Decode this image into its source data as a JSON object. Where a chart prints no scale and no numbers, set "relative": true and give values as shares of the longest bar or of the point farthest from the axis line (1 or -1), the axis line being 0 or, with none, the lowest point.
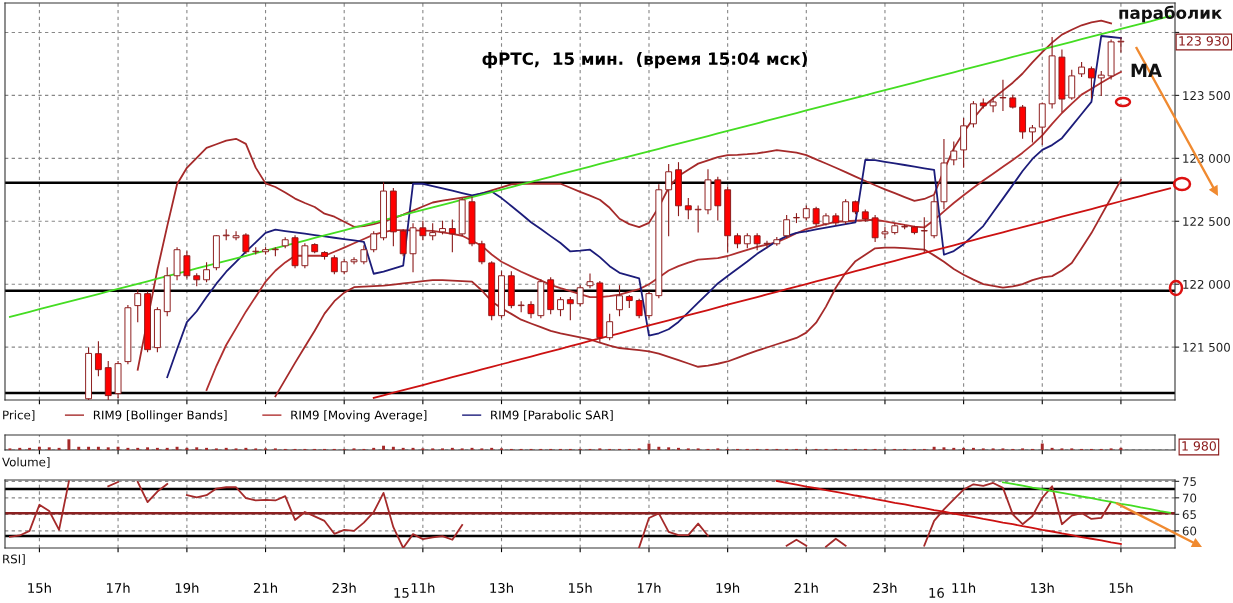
{
  "chart_data": [
    {
      "type": "candlestick",
      "title": "фРТС,  15 мин.  (время 15:04 мск)",
      "ohlc": [
        null,
        null,
        null,
        null,
        null,
        null,
        null,
        null,
        [
          121090,
          121495,
          121085,
          121450
        ],
        [
          121448,
          121543,
          121274,
          121321
        ],
        [
          121337,
          121385,
          121083,
          121115
        ],
        [
          121131,
          121385,
          121100,
          121369
        ],
        [
          121385,
          121830,
          121369,
          121813
        ],
        [
          121830,
          121956,
          121702,
          121925
        ],
        [
          121925,
          121940,
          121464,
          121480
        ],
        [
          121496,
          121813,
          121464,
          121798
        ],
        [
          121782,
          122130,
          121750,
          122067
        ],
        [
          122067,
          122290,
          122035,
          122274
        ],
        [
          122226,
          122258,
          122050,
          122067
        ],
        [
          122067,
          122082,
          121988,
          122035
        ],
        [
          122035,
          122170,
          122020,
          122115
        ],
        [
          122131,
          122385,
          122115,
          122385
        ],
        [
          122385,
          122432,
          122353,
          122390
        ],
        [
          122369,
          122416,
          122353,
          122385
        ],
        [
          122391,
          122400,
          122245,
          122258
        ],
        [
          122258,
          122290,
          122240,
          122262
        ],
        [
          122258,
          122290,
          122240,
          122274
        ],
        [
          122274,
          122290,
          122226,
          122278
        ],
        [
          122305,
          122369,
          122290,
          122353
        ],
        [
          122369,
          122385,
          122131,
          122147
        ],
        [
          122147,
          122320,
          122131,
          122305
        ],
        [
          122315,
          122320,
          122250,
          122258
        ],
        [
          122252,
          122258,
          122200,
          122220
        ],
        [
          122210,
          122226,
          122083,
          122099
        ],
        [
          122099,
          122194,
          122083,
          122178
        ],
        [
          122178,
          122210,
          122162,
          122194
        ],
        [
          122178,
          122305,
          122162,
          122274
        ],
        [
          122274,
          122416,
          122258,
          122400
        ],
        [
          122369,
          122805,
          122353,
          122740
        ],
        [
          122740,
          122760,
          122305,
          122416
        ],
        [
          122423,
          122432,
          122226,
          122242
        ],
        [
          122242,
          122480,
          122099,
          122448
        ],
        [
          122448,
          122500,
          122353,
          122385
        ],
        [
          122385,
          122480,
          122353,
          122410
        ],
        [
          122416,
          122500,
          122400,
          122442
        ],
        [
          122442,
          122510,
          122258,
          122400
        ],
        [
          122400,
          122680,
          122385,
          122670
        ],
        [
          122655,
          122690,
          122305,
          122321
        ],
        [
          122321,
          122340,
          122162,
          122178
        ],
        [
          122169,
          122178,
          121718,
          121750
        ],
        [
          121750,
          122099,
          121734,
          122067
        ],
        [
          122067,
          122099,
          121813,
          121830
        ],
        [
          121830,
          121860,
          121782,
          121834
        ],
        [
          121839,
          121860,
          121734,
          121766
        ],
        [
          121750,
          122035,
          121734,
          122020
        ],
        [
          122035,
          122050,
          121766,
          121798
        ],
        [
          121798,
          121893,
          121750,
          121877
        ],
        [
          121877,
          121893,
          121718,
          121845
        ],
        [
          121845,
          121988,
          121830,
          121972
        ],
        [
          121988,
          122080,
          121972,
          122020
        ],
        [
          122010,
          122020,
          121543,
          121575
        ],
        [
          121575,
          121760,
          121560,
          121702
        ],
        [
          121797,
          121988,
          121750,
          121908
        ],
        [
          121902,
          121910,
          121815,
          121870
        ],
        [
          121870,
          121880,
          121734,
          121750
        ],
        [
          121750,
          121940,
          121734,
          121925
        ],
        [
          121909,
          122790,
          121893,
          122750
        ],
        [
          122750,
          122950,
          122385,
          122893
        ],
        [
          122909,
          122965,
          122545,
          122623
        ],
        [
          122623,
          122680,
          122520,
          122591
        ],
        [
          122591,
          122620,
          122416,
          122595
        ],
        [
          122591,
          122909,
          122560,
          122829
        ],
        [
          122829,
          122850,
          122510,
          122623
        ],
        [
          122750,
          122770,
          122258,
          122385
        ],
        [
          122385,
          122400,
          122290,
          122321
        ],
        [
          122321,
          122400,
          122290,
          122385
        ],
        [
          122385,
          122400,
          122274,
          122321
        ],
        [
          122321,
          122340,
          122290,
          122325
        ],
        [
          122321,
          122370,
          122310,
          122353
        ],
        [
          122385,
          122545,
          122370,
          122512
        ],
        [
          122527,
          122560,
          122490,
          122530
        ],
        [
          122527,
          122620,
          122510,
          122600
        ],
        [
          122600,
          122610,
          122465,
          122480
        ],
        [
          122480,
          122560,
          122470,
          122543
        ],
        [
          122543,
          122560,
          122470,
          122487
        ],
        [
          122496,
          122670,
          122480,
          122655
        ],
        [
          122655,
          122660,
          122560,
          122575
        ],
        [
          122575,
          122590,
          122500,
          122518
        ],
        [
          122527,
          122545,
          122340,
          122369
        ],
        [
          122400,
          122450,
          122369,
          122416
        ],
        [
          122410,
          122480,
          122400,
          122464
        ],
        [
          122455,
          122470,
          122440,
          122458
        ],
        [
          122455,
          122460,
          122400,
          122410
        ],
        [
          122423,
          122527,
          122258,
          122426
        ],
        [
          122385,
          122700,
          122370,
          122655
        ],
        [
          122655,
          123150,
          122600,
          122963
        ],
        [
          122988,
          123130,
          122950,
          123058
        ],
        [
          123067,
          123315,
          122930,
          123258
        ],
        [
          123274,
          123450,
          123250,
          123433
        ],
        [
          123440,
          123470,
          123400,
          123417
        ],
        [
          123417,
          123480,
          123370,
          123448
        ],
        [
          123480,
          123620,
          123380,
          123483
        ],
        [
          123480,
          123500,
          123400,
          123407
        ],
        [
          123407,
          123420,
          123160,
          123210
        ],
        [
          123210,
          123260,
          123130,
          123242
        ],
        [
          123248,
          123440,
          123110,
          123433
        ],
        [
          123433,
          123960,
          123400,
          123814
        ],
        [
          123804,
          123860,
          123370,
          123471
        ],
        [
          123480,
          123700,
          123470,
          123655
        ],
        [
          123671,
          123760,
          123650,
          123725
        ],
        [
          123712,
          123725,
          123480,
          123639
        ],
        [
          123639,
          123690,
          123500,
          123661
        ],
        [
          123655,
          123940,
          123630,
          123925
        ],
        [
          123925,
          123958,
          123845,
          123930
        ],
        null,
        null,
        null,
        null,
        null
      ],
      "colors": [
        null,
        null,
        null,
        null,
        null,
        null,
        null,
        null,
        "#ffffff",
        "#ff0000",
        "#ff0000",
        "#ffffff",
        "#ffffff",
        "#ffffff",
        "#ff0000",
        "#ffffff",
        "#ffffff",
        "#ffffff",
        "#ff0000",
        "#ff0000",
        "#ffffff",
        "#ffffff",
        "#ffffff",
        "#ffffff",
        "#ff0000",
        "#ffffff",
        "#ffffff",
        "#ffffff",
        "#ffffff",
        "#ff0000",
        "#ffffff",
        "#ff0000",
        "#ff0000",
        "#ff0000",
        "#ffffff",
        "#ffffff",
        "#ffffff",
        "#ffffff",
        "#ffffff",
        "#ff0000",
        "#ff0000",
        "#ffffff",
        "#ff0000",
        "#ffffff",
        "#ffffff",
        "#ff0000",
        "#ffffff",
        "#ff0000",
        "#ff0000",
        "#ff0000",
        "#ffffff",
        "#ff0000",
        "#ffffff",
        "#ff0000",
        "#ffffff",
        "#ff0000",
        "#ffffff",
        "#ff0000",
        "#ffffff",
        "#ffffff",
        "#ff0000",
        "#ffffff",
        "#ffffff",
        "#ff0000",
        "#ff0000",
        "#ffffff",
        "#ffffff",
        "#ffffff",
        "#ff0000",
        "#ff0000",
        "#ffffff",
        "#ffffff",
        "#ff0000",
        "#ff0000",
        "#ff0000",
        "#ffffff",
        "#ff0000",
        "#ffffff",
        "#ffffff",
        "#ffffff",
        "#ffffff",
        "#ffffff",
        "#ff0000",
        "#ffffff",
        "#ff0000",
        "#ffffff",
        "#ff0000",
        "#ff0000",
        "#ff0000",
        "#ffffff",
        "#ffffff",
        "#ffffff",
        "#ff0000",
        "#ffffff",
        "#ffffff",
        "#ffffff",
        "#ffffff",
        "#ffffff",
        "#ffffff",
        "#ff0000",
        "#ffffff",
        "#ffffff",
        "#ff0000",
        "#ff0000",
        "#ffffff",
        "#ffffff",
        "#ffffff",
        "#ff0000",
        "#ffffff",
        "#ffffff",
        "#ff0000",
        "#ffffff",
        "#ffffff",
        "#ffffff",
        null,
        null,
        null,
        null,
        null
      ],
      "series": [
        {
          "type": "line",
          "name": "RIM9 [Bollinger Bands]",
          "color": "#a52a2a",
          "values": [
            null,
            null,
            null,
            null,
            null,
            null,
            null,
            null,
            null,
            null,
            null,
            null,
            null,
            121321,
            121718,
            122115,
            122461,
            122794,
            122925,
            123004,
            123083,
            123112,
            123140,
            123155,
            123115,
            122926,
            122801,
            122772,
            122728,
            122680,
            122645,
            122613,
            122560,
            122536,
            122496,
            122456,
            122461,
            122477,
            122499,
            122523,
            122553,
            122585,
            122617,
            122649,
            122664,
            122676,
            122688,
            122700,
            122721,
            122745,
            122769,
            122793,
            122798,
            122798,
            122798,
            122798,
            122798,
            122766,
            122734,
            122703,
            122671,
            122607,
            122520,
            122477,
            122454,
            122487,
            122613,
            122766,
            122859,
            122910,
            122958,
            122984,
            123010,
            123025,
            123028,
            123033,
            123040,
            123052,
            123065,
            123055,
            123045,
            123026,
            122992,
            122959,
            122925,
            122890,
            122855,
            122820,
            122786,
            122754,
            122723,
            122692,
            122662,
            122677,
            122711,
            122905,
            123079,
            123206,
            123316,
            123412,
            123475,
            123538,
            123601,
            123674,
            123762,
            123844,
            123919,
            123983,
            124021,
            124057,
            124080,
            124094,
            124072,
            null,
            null,
            null,
            null,
            null,
            null
          ]
        },
        {
          "type": "line",
          "color": "#a52a2a",
          "values": [
            null,
            null,
            null,
            null,
            null,
            null,
            null,
            null,
            null,
            null,
            null,
            null,
            null,
            null,
            null,
            null,
            null,
            null,
            null,
            null,
            null,
            null,
            null,
            null,
            null,
            null,
            null,
            121109,
            121242,
            121375,
            121503,
            121630,
            121766,
            121865,
            121933,
            121976,
            121980,
            121984,
            121988,
            121997,
            122006,
            122015,
            122024,
            122033,
            122032,
            122028,
            122024,
            122020,
            121950,
            121863,
            121809,
            121764,
            121718,
            121688,
            121659,
            121629,
            121610,
            121594,
            121578,
            121562,
            121535,
            121512,
            121493,
            121484,
            121476,
            121467,
            121448,
            121422,
            121396,
            121370,
            121344,
            121353,
            121368,
            121386,
            121415,
            121444,
            121472,
            121497,
            121523,
            121548,
            121573,
            121615,
            121694,
            121822,
            121972,
            122091,
            122183,
            122234,
            122285,
            122290,
            122290,
            122287,
            122281,
            122275,
            122229,
            122178,
            122121,
            122075,
            122036,
            122001,
            121986,
            121973,
            121982,
            122000,
            122032,
            122054,
            122064,
            122109,
            122168,
            122286,
            122406,
            122547,
            122687,
            122828,
            null,
            null,
            null,
            null,
            null
          ]
        },
        {
          "type": "line",
          "name": "RIM9 [Moving Average]",
          "color": "#b03030",
          "values": [
            null,
            null,
            null,
            null,
            null,
            null,
            null,
            null,
            null,
            null,
            null,
            null,
            null,
            null,
            null,
            null,
            null,
            null,
            null,
            null,
            121159,
            121350,
            121517,
            121649,
            121782,
            121901,
            122020,
            122107,
            122173,
            122226,
            122226,
            122226,
            122226,
            122258,
            122290,
            122325,
            122359,
            122394,
            122413,
            122429,
            122430,
            122428,
            122426,
            122423,
            122412,
            122399,
            122385,
            122345,
            122305,
            122236,
            122178,
            122139,
            122099,
            122064,
            122030,
            121995,
            121969,
            121945,
            121921,
            121898,
            121898,
            121905,
            121918,
            121939,
            121961,
            122000,
            122054,
            122109,
            122144,
            122171,
            122195,
            122201,
            122207,
            122224,
            122248,
            122272,
            122296,
            122315,
            122334,
            122367,
            122405,
            122438,
            122457,
            122477,
            122496,
            122500,
            122504,
            122508,
            122512,
            122499,
            122486,
            122471,
            122458,
            122451,
            122510,
            122579,
            122645,
            122706,
            122766,
            122824,
            122878,
            122933,
            122987,
            123045,
            123109,
            123183,
            123274,
            123360,
            123435,
            123506,
            123553,
            123600,
            123646,
            123687,
            null,
            null,
            null,
            null,
            null
          ]
        },
        {
          "type": "line",
          "name": "RIM9 [Parabolic SAR]",
          "color": "#1c1c7a",
          "values": [
            null,
            null,
            null,
            null,
            null,
            null,
            null,
            null,
            null,
            null,
            null,
            null,
            null,
            null,
            null,
            null,
            121261,
            121483,
            121699,
            121785,
            121898,
            122004,
            122099,
            122178,
            122258,
            122333,
            122408,
            122433,
            122422,
            122412,
            122401,
            122390,
            122380,
            122369,
            122358,
            122348,
            122337,
            122083,
            122100,
            122124,
            122147,
            122798,
            122798,
            122780,
            122761,
            122743,
            122724,
            122705,
            122721,
            122737,
            122684,
            122621,
            122558,
            122492,
            122438,
            122382,
            122327,
            122260,
            122266,
            122274,
            122215,
            122143,
            122090,
            122068,
            122047,
            121591,
            121610,
            121642,
            121700,
            121776,
            121853,
            121929,
            122006,
            122065,
            122123,
            122180,
            122241,
            122292,
            122343,
            122382,
            122407,
            122420,
            122435,
            122450,
            122464,
            122477,
            122491,
            122988,
            122985,
            122972,
            122960,
            122947,
            122934,
            122921,
            122909,
            122234,
            122263,
            122318,
            122390,
            122462,
            122571,
            122680,
            122789,
            122899,
            122995,
            123067,
            123105,
            123160,
            123256,
            123352,
            123448,
            123972,
            123964,
            123956,
            null,
            null,
            null,
            null,
            null
          ]
        },
        {
          "type": "line",
          "color": "#44dd22",
          "values": [
            121740,
            121760,
            121781,
            121801,
            121821,
            121841,
            121862,
            121882,
            121902,
            121922,
            121942,
            121963,
            121983,
            122003,
            122023,
            122044,
            122064,
            122084,
            122104,
            122125,
            122145,
            122165,
            122185,
            122206,
            122226,
            122246,
            122266,
            122287,
            122307,
            122327,
            122347,
            122368,
            122388,
            122408,
            122428,
            122449,
            122469,
            122489,
            122509,
            122529,
            122550,
            122570,
            122590,
            122610,
            122631,
            122651,
            122671,
            122691,
            122712,
            122732,
            122752,
            122772,
            122793,
            122813,
            122833,
            122853,
            122874,
            122894,
            122914,
            122934,
            122955,
            122975,
            122995,
            123015,
            123036,
            123056,
            123076,
            123096,
            123117,
            123137,
            123157,
            123177,
            123198,
            123218,
            123238,
            123258,
            123278,
            123299,
            123319,
            123339,
            123359,
            123380,
            123400,
            123420,
            123440,
            123461,
            123481,
            123501,
            123521,
            123542,
            123562,
            123582,
            123602,
            123623,
            123643,
            123663,
            123683,
            123704,
            123724,
            123744,
            123764,
            123785,
            123805,
            123825,
            123845,
            123866,
            123886,
            123906,
            123926,
            123947,
            123967,
            123987,
            124007,
            124028,
            124048,
            124068,
            124088,
            124109,
            124129
          ]
        },
        {
          "type": "line",
          "color": "#cc1111",
          "values": [
            null,
            null,
            null,
            null,
            null,
            null,
            null,
            null,
            null,
            null,
            null,
            null,
            null,
            null,
            null,
            null,
            null,
            null,
            null,
            null,
            null,
            null,
            null,
            null,
            null,
            null,
            null,
            null,
            null,
            null,
            null,
            null,
            null,
            null,
            null,
            null,
            null,
            121096,
            121117,
            121138,
            121158,
            121179,
            121199,
            121220,
            121240,
            121261,
            121281,
            121302,
            121323,
            121343,
            121364,
            121384,
            121405,
            121425,
            121446,
            121466,
            121487,
            121508,
            121528,
            121549,
            121569,
            121590,
            121610,
            121631,
            121652,
            121672,
            121693,
            121713,
            121734,
            121754,
            121775,
            121795,
            121816,
            121837,
            121857,
            121878,
            121898,
            121919,
            121939,
            121960,
            121980,
            122001,
            122022,
            122042,
            122063,
            122083,
            122104,
            122124,
            122145,
            122166,
            122186,
            122207,
            122227,
            122248,
            122268,
            122289,
            122309,
            122330,
            122351,
            122371,
            122392,
            122412,
            122433,
            122453,
            122474,
            122494,
            122515,
            122536,
            122556,
            122577,
            122597,
            122618,
            122638,
            122659,
            122680,
            122700,
            122721,
            122741,
            122762
          ]
        }
      ],
      "ylim": [
        121080,
        124234
      ],
      "yticks": [
        {
          "value": 121500,
          "label": "121 500"
        },
        {
          "value": 122000,
          "label": "122 000"
        },
        {
          "value": 122500,
          "label": "122 500"
        },
        {
          "value": 123000,
          "label": "123 000"
        },
        {
          "value": 123500,
          "label": "123 500"
        },
        {
          "value": 124000,
          "label": null
        }
      ],
      "ref_lines": [
        {
          "axis": "y",
          "value": 122805,
          "color": "#000000"
        },
        {
          "axis": "y",
          "value": 121948,
          "color": "#000000"
        },
        {
          "axis": "y",
          "value": 121135,
          "color": "#000000"
        }
      ],
      "annotations": [
        "Price]",
        "параболик",
        "MA",
        "123 930"
      ],
      "grid": true,
      "legend": "bottom",
      "tick_labels": "y"
    },
    {
      "type": "bar",
      "relative": true,
      "color": "#a52a2a",
      "values": [
        0.15,
        0.2,
        0.2,
        0.3,
        0.25,
        0.2,
        1.0,
        0.3,
        0.3,
        0.3,
        0.25,
        0.3,
        0.2,
        0.2,
        0.25,
        0.2,
        0.2,
        0.3,
        0.2,
        0.25,
        0.2,
        0.15,
        0.2,
        0.15,
        0.2,
        0.15,
        0.15,
        0.15,
        0.1,
        0.1,
        0.1,
        0.1,
        0.1,
        0.1,
        0.1,
        0.15,
        0.1,
        0.2,
        0.4,
        0.3,
        0.2,
        0.2,
        0.15,
        0.15,
        0.15,
        0.2,
        0.15,
        0.2,
        0.15,
        0.2,
        0.15,
        0.1,
        0.1,
        0.1,
        0.1,
        0.1,
        0.1,
        0.1,
        0.1,
        0.1,
        0.15,
        0.1,
        0.1,
        0.1,
        0.15,
        0.6,
        0.3,
        0.25,
        0.2,
        0.15,
        0.15,
        0.1,
        0.15,
        0.1,
        0.1,
        0.1,
        0.1,
        0.1,
        0.1,
        0.1,
        0.1,
        0.1,
        0.1,
        0.1,
        0.1,
        0.1,
        0.1,
        0.1,
        0.1,
        0.1,
        0.1,
        0.1,
        0.1,
        0.1,
        0.3,
        0.25,
        0.2,
        0.2,
        0.2,
        0.15,
        0.15,
        0.15,
        0.1,
        0.15,
        0.1,
        0.6,
        0.2,
        0.15,
        0.15,
        0.1,
        0.1,
        0.1,
        0.15,
        0.2,
        null,
        null,
        null,
        null,
        null
      ],
      "annotations": [
        "Volume]",
        "1 980"
      ],
      "grid": "x",
      "tick_labels": false
    },
    {
      "type": "line",
      "categories": [
        null,
        null,
        null,
        "15h",
        null,
        null,
        null,
        null,
        null,
        null,
        null,
        "17h",
        null,
        null,
        null,
        null,
        null,
        null,
        "19h",
        null,
        null,
        null,
        null,
        null,
        null,
        null,
        "21h",
        null,
        null,
        null,
        null,
        null,
        null,
        null,
        "23h",
        null,
        null,
        null,
        null,
        null,
        null,
        null,
        "11h",
        null,
        null,
        null,
        null,
        null,
        null,
        null,
        "13h",
        null,
        null,
        null,
        null,
        null,
        null,
        null,
        "15h",
        null,
        null,
        null,
        null,
        null,
        null,
        "17h",
        null,
        null,
        null,
        null,
        null,
        null,
        null,
        "19h",
        null,
        null,
        null,
        null,
        null,
        null,
        null,
        "21h",
        null,
        null,
        null,
        null,
        null,
        null,
        null,
        "23h",
        null,
        null,
        null,
        null,
        null,
        null,
        null,
        "11h",
        null,
        null,
        null,
        null,
        null,
        null,
        null,
        "13h",
        null,
        null,
        null,
        null,
        null,
        null,
        null,
        "15h",
        null,
        null,
        null,
        null,
        null
      ],
      "series": [
        {
          "color": "#a52a2a",
          "values": [
            58.2,
            58.6,
            60.0,
            67.9,
            66.0,
            60.3,
            75.0,
            null,
            null,
            null,
            73.5,
            74.8,
            null,
            74.8,
            68.7,
            71.9,
            74.2,
            null,
            70.8,
            70.1,
            70.8,
            72.8,
            73.2,
            73.2,
            69.9,
            69.2,
            69.4,
            69.2,
            70.5,
            63.3,
            65.7,
            64.4,
            63.0,
            59.1,
            60.3,
            60.0,
            62.5,
            65.7,
            71.5,
            61.1,
            54.8,
            59.0,
            57.5,
            58.0,
            58.4,
            57.3,
            61.8,
            null,
            null,
            null,
            null,
            null,
            null,
            null,
            null,
            null,
            null,
            null,
            null,
            null,
            null,
            null,
            null,
            null,
            55.0,
            63.9,
            65.3,
            59.7,
            58.7,
            58.7,
            62.2,
            58.5,
            null,
            null,
            null,
            null,
            null,
            null,
            null,
            55.5,
            57.3,
            55.5,
            null,
            55.2,
            57.6,
            55.5,
            null,
            null,
            null,
            null,
            null,
            null,
            null,
            55.5,
            63.0,
            66.5,
            69.5,
            72.5,
            74.1,
            73.6,
            74.5,
            73.0,
            65.0,
            62.0,
            64.5,
            70.0,
            73.5,
            62.0,
            64.6,
            65.4,
            63.6,
            63.9,
            68.8,
            null,
            null,
            null,
            null,
            null,
            null
          ]
        },
        {
          "color": "#cc1111",
          "values": [
            null,
            null,
            null,
            null,
            null,
            null,
            null,
            null,
            null,
            null,
            null,
            null,
            null,
            null,
            null,
            null,
            null,
            null,
            null,
            null,
            null,
            null,
            null,
            null,
            null,
            null,
            null,
            null,
            null,
            null,
            null,
            null,
            null,
            null,
            null,
            null,
            null,
            null,
            null,
            null,
            null,
            null,
            null,
            null,
            null,
            null,
            null,
            null,
            null,
            null,
            null,
            null,
            null,
            null,
            null,
            null,
            null,
            null,
            null,
            null,
            null,
            null,
            null,
            null,
            null,
            null,
            null,
            null,
            null,
            null,
            null,
            null,
            null,
            null,
            null,
            null,
            null,
            null,
            75.1,
            74.5,
            74.0,
            73.4,
            72.9,
            72.3,
            71.8,
            71.3,
            70.7,
            70.2,
            69.6,
            69.1,
            68.5,
            68.0,
            67.4,
            66.9,
            66.3,
            65.8,
            65.2,
            64.7,
            64.2,
            63.6,
            63.1,
            62.5,
            62.0,
            61.4,
            60.9,
            60.3,
            59.8,
            59.2,
            58.7,
            58.1,
            57.6,
            57.1,
            56.5,
            56.0,
            null,
            null,
            null,
            null,
            null
          ]
        },
        {
          "color": "#44dd22",
          "values": [
            null,
            null,
            null,
            null,
            null,
            null,
            null,
            null,
            null,
            null,
            null,
            null,
            null,
            null,
            null,
            null,
            null,
            null,
            null,
            null,
            null,
            null,
            null,
            null,
            null,
            null,
            null,
            null,
            null,
            null,
            null,
            null,
            null,
            null,
            null,
            null,
            null,
            null,
            null,
            null,
            null,
            null,
            null,
            null,
            null,
            null,
            null,
            null,
            null,
            null,
            null,
            null,
            null,
            null,
            null,
            null,
            null,
            null,
            null,
            null,
            null,
            null,
            null,
            null,
            null,
            null,
            null,
            null,
            null,
            null,
            null,
            null,
            null,
            null,
            null,
            null,
            null,
            null,
            null,
            null,
            null,
            null,
            null,
            null,
            null,
            null,
            null,
            null,
            null,
            null,
            null,
            null,
            null,
            null,
            null,
            null,
            null,
            null,
            null,
            null,
            null,
            74.7,
            74.2,
            73.7,
            73.1,
            72.6,
            72.0,
            71.5,
            71.0,
            70.4,
            69.9,
            69.3,
            68.8,
            68.2,
            67.7,
            67.1,
            66.6,
            66.0,
            65.5
          ]
        }
      ],
      "ylim": [
        54.8,
        75.4
      ],
      "yticks": [
        60,
        65,
        70,
        75
      ],
      "ref_lines": [
        {
          "axis": "y",
          "value": 72.7,
          "color": "#000000"
        },
        {
          "axis": "y",
          "value": 65.3,
          "color": "#8b2020"
        },
        {
          "axis": "y",
          "value": 58.4,
          "color": "#000000"
        }
      ],
      "annotations": [
        "RSI]",
        "15",
        "16"
      ],
      "grid": true
    }
  ]
}
